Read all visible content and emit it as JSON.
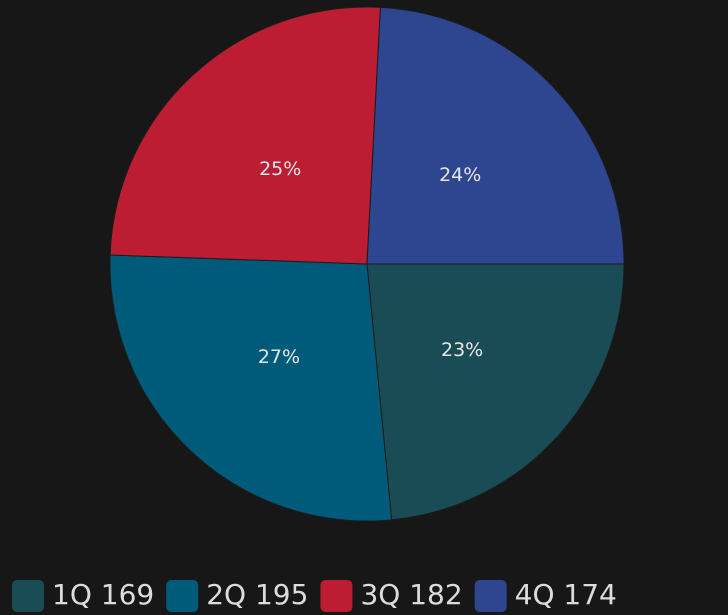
{
  "chart_data": {
    "type": "pie",
    "categories": [
      "1Q",
      "2Q",
      "3Q",
      "4Q"
    ],
    "values": [
      169,
      195,
      182,
      174
    ],
    "value_labels": [
      "23%",
      "27%",
      "25%",
      "24%"
    ],
    "colors": [
      "#1a4c55",
      "#005b7b",
      "#bd1d33",
      "#2e4590"
    ],
    "legend": "bottom"
  }
}
